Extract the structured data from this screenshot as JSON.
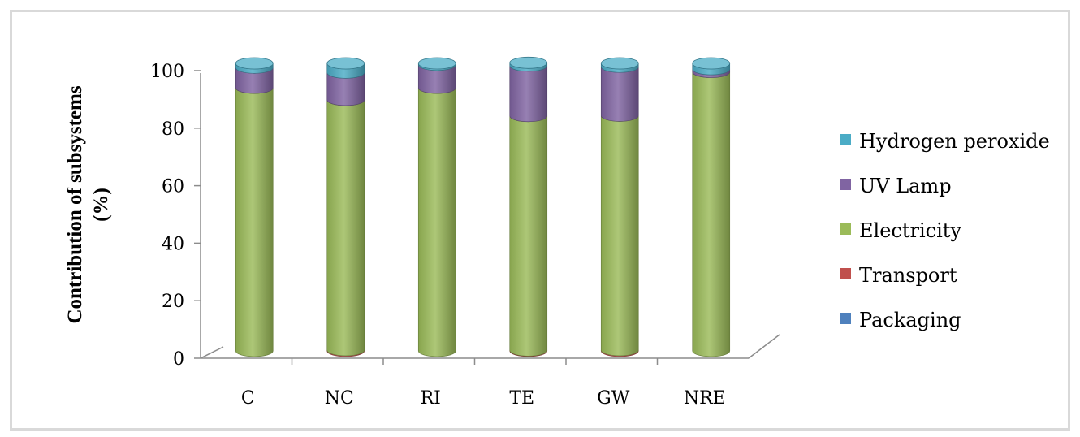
{
  "chart_data": {
    "type": "bar",
    "stacked": true,
    "style": "3d-cylinder",
    "title": "",
    "xlabel": "",
    "ylabel_lines": [
      "Contribution of subsystems",
      "(%)"
    ],
    "ylim": [
      0,
      100
    ],
    "yticks": [
      "0",
      "20",
      "40",
      "60",
      "80",
      "100"
    ],
    "categories": [
      "C",
      "NC",
      "RI",
      "TE",
      "GW",
      "NRE"
    ],
    "series": [
      {
        "name": "Packaging",
        "color": "#4f81bd",
        "values": [
          0,
          0,
          0,
          0,
          0,
          0
        ]
      },
      {
        "name": "Transport",
        "color": "#c0504d",
        "values": [
          0,
          0.3,
          0,
          0.2,
          0.3,
          0
        ]
      },
      {
        "name": "Electricity",
        "color": "#9bbb59",
        "values": [
          91.5,
          87,
          91.5,
          81.5,
          81.5,
          97
        ]
      },
      {
        "name": "UV Lamp",
        "color": "#8064a2",
        "values": [
          7,
          9.5,
          8,
          17.5,
          17,
          1
        ]
      },
      {
        "name": "Hydrogen peroxide",
        "color": "#4bacc6",
        "values": [
          1.5,
          3.2,
          0.5,
          1,
          1.2,
          2
        ]
      }
    ],
    "legend": {
      "position": "right",
      "order": [
        "Hydrogen peroxide",
        "UV Lamp",
        "Electricity",
        "Transport",
        "Packaging"
      ]
    },
    "grid": false
  }
}
